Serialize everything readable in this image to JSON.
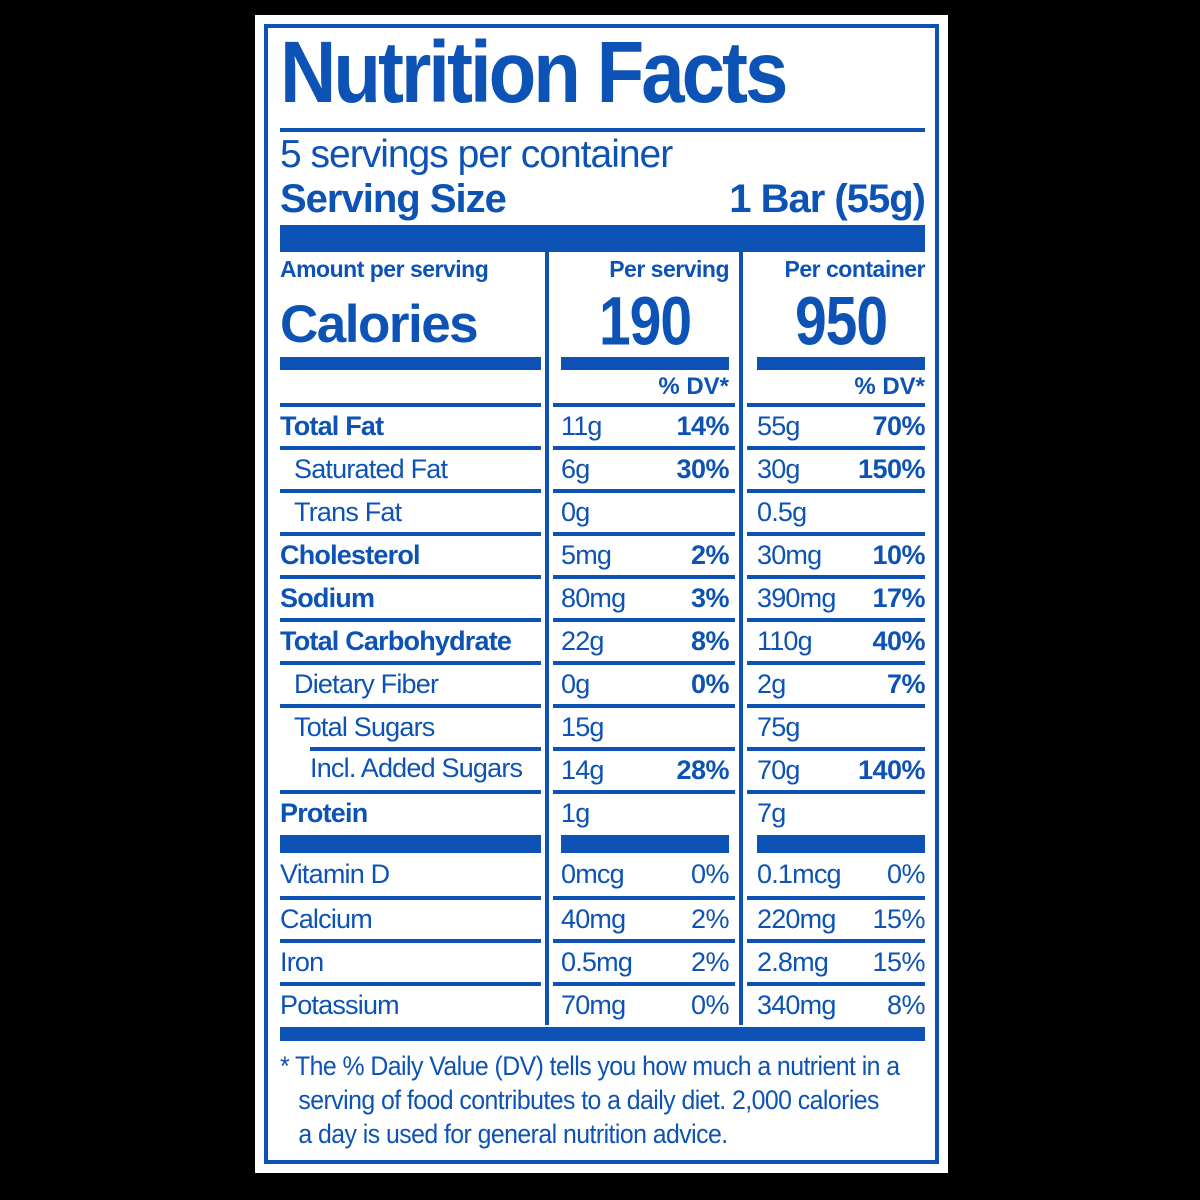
{
  "colors": {
    "label_blue": "#0D53B6",
    "label_background": "#FFFFFF",
    "page_background": "#000000"
  },
  "header": {
    "title": "Nutrition Facts",
    "servings_per_container": "5 servings per container",
    "serving_size_label": "Serving Size",
    "serving_size_value": "1 Bar (55g)"
  },
  "calories": {
    "amount_label": "Amount per serving",
    "per_serving_label": "Per serving",
    "per_container_label": "Per container",
    "name": "Calories",
    "per_serving_value": "190",
    "per_container_value": "950",
    "dv_header": "% DV*"
  },
  "nutrients": [
    {
      "label": "Total Fat",
      "serving": {
        "amount": "11g",
        "dv": "14%"
      },
      "container": {
        "amount": "55g",
        "dv": "70%"
      }
    },
    {
      "label": "Saturated Fat",
      "serving": {
        "amount": "6g",
        "dv": "30%"
      },
      "container": {
        "amount": "30g",
        "dv": "150%"
      }
    },
    {
      "label": "Trans Fat",
      "serving": {
        "amount": "0g",
        "dv": ""
      },
      "container": {
        "amount": "0.5g",
        "dv": ""
      }
    },
    {
      "label": "Cholesterol",
      "serving": {
        "amount": "5mg",
        "dv": "2%"
      },
      "container": {
        "amount": "30mg",
        "dv": "10%"
      }
    },
    {
      "label": "Sodium",
      "serving": {
        "amount": "80mg",
        "dv": "3%"
      },
      "container": {
        "amount": "390mg",
        "dv": "17%"
      }
    },
    {
      "label": "Total Carbohydrate",
      "serving": {
        "amount": "22g",
        "dv": "8%"
      },
      "container": {
        "amount": "110g",
        "dv": "40%"
      }
    },
    {
      "label": "Dietary Fiber",
      "serving": {
        "amount": "0g",
        "dv": "0%"
      },
      "container": {
        "amount": "2g",
        "dv": "7%"
      }
    },
    {
      "label": "Total Sugars",
      "serving": {
        "amount": "15g",
        "dv": ""
      },
      "container": {
        "amount": "75g",
        "dv": ""
      }
    },
    {
      "label": "Incl. Added Sugars",
      "serving": {
        "amount": "14g",
        "dv": "28%"
      },
      "container": {
        "amount": "70g",
        "dv": "140%"
      }
    },
    {
      "label": "Protein",
      "serving": {
        "amount": "1g",
        "dv": ""
      },
      "container": {
        "amount": "7g",
        "dv": ""
      }
    }
  ],
  "vitamins": [
    {
      "label": "Vitamin D",
      "serving": {
        "amount": "0mcg",
        "dv": "0%"
      },
      "container": {
        "amount": "0.1mcg",
        "dv": "0%"
      }
    },
    {
      "label": "Calcium",
      "serving": {
        "amount": "40mg",
        "dv": "2%"
      },
      "container": {
        "amount": "220mg",
        "dv": "15%"
      }
    },
    {
      "label": "Iron",
      "serving": {
        "amount": "0.5mg",
        "dv": "2%"
      },
      "container": {
        "amount": "2.8mg",
        "dv": "15%"
      }
    },
    {
      "label": "Potassium",
      "serving": {
        "amount": "70mg",
        "dv": "0%"
      },
      "container": {
        "amount": "340mg",
        "dv": "8%"
      }
    }
  ],
  "footnote": [
    "* The % Daily Value (DV) tells you how much a nutrient in a",
    "serving of food contributes to a daily diet. 2,000 calories",
    "a day is used for general nutrition advice."
  ]
}
